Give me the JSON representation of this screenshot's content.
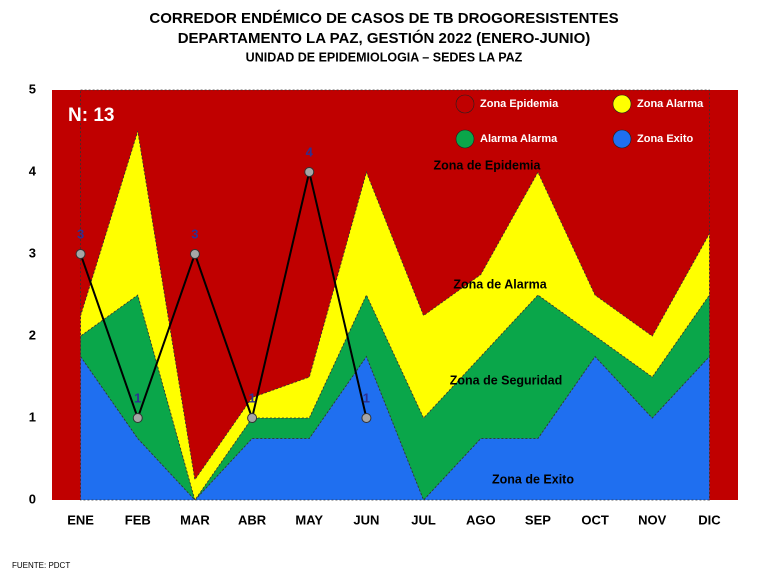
{
  "chart_data": {
    "type": "stacked_area",
    "title": "CORREDOR ENDÉMICO DE CASOS DE TB DROGORESISTENTES",
    "subtitle": "DEPARTAMENTO  LA PAZ, GESTIÓN 2022 (ENERO-JUNIO)",
    "subtitle2": "UNIDAD DE EPIDEMIOLOGIA – SEDES LA PAZ",
    "source": "FUENTE:  PDCT",
    "annotations": [
      "N: 13",
      "Zona de Epidemia",
      "Zona de Alarma",
      "Zona de Seguridad",
      "Zona de Exito"
    ],
    "categories": [
      "ENE",
      "FEB",
      "MAR",
      "ABR",
      "MAY",
      "JUN",
      "JUL",
      "AGO",
      "SEP",
      "OCT",
      "NOV",
      "DIC"
    ],
    "series": [
      {
        "name": "Zona Exito",
        "color": "#1f6ff0",
        "values": [
          1.75,
          0.75,
          0,
          0.75,
          0.75,
          1.75,
          0,
          0.75,
          0.75,
          1.75,
          1,
          1.75
        ]
      },
      {
        "name": "Alarma  Alarma",
        "color": "#0aa64a",
        "values": [
          0.25,
          1.75,
          0,
          0.25,
          0.25,
          0.75,
          1,
          1,
          1.75,
          0.25,
          0.5,
          0.75
        ]
      },
      {
        "name": "Zona  Alarma",
        "color": "#ffff00",
        "values": [
          0.25,
          2,
          0.25,
          0.25,
          0.5,
          1.5,
          1.25,
          1,
          1.5,
          0.5,
          0.5,
          0.75
        ]
      },
      {
        "name": "Zona Epidemia",
        "color": "#c00000",
        "values": [
          2.75,
          0.5,
          4.75,
          3.75,
          3.5,
          1,
          2.75,
          2.25,
          1,
          2.5,
          3,
          1.75
        ]
      }
    ],
    "cases": {
      "color": "#000000",
      "marker_color": "#a6a6a6",
      "label_color": "#2e3192",
      "values": [
        3,
        1,
        3,
        1,
        4,
        1,
        null,
        null,
        null,
        null,
        null,
        null
      ]
    },
    "ylim": [
      0,
      5
    ],
    "yticks": [
      0,
      1,
      2,
      3,
      4,
      5
    ],
    "grid": false
  }
}
